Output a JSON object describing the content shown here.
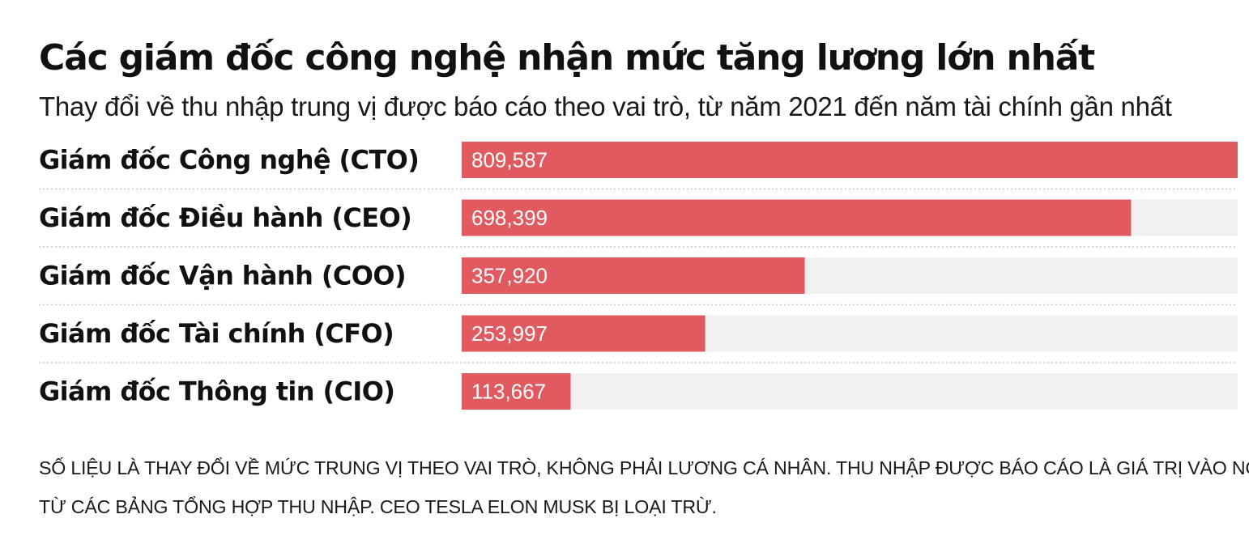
{
  "title": "Các giám đốc công nghệ nhận mức tăng lương lớn nhất",
  "subtitle": "Thay đổi về thu nhập trung vị được báo cáo theo vai trò, từ năm 2021 đến năm tài chính gần nhất",
  "note": {
    "line1": "SỐ LIỆU LÀ THAY ĐỔI VỀ MỨC TRUNG VỊ THEO VAI TRÒ, KHÔNG PHẢI LƯƠNG CÁ NHÂN. THU NHẬP ĐƯỢC BÁO CÁO LÀ GIÁ TRỊ VÀO NGÀY CẤP",
    "line2": "TỪ CÁC BẢNG TỔNG HỢP THU NHẬP. CEO TESLA ELON MUSK BỊ LOẠI TRỪ."
  },
  "colors": {
    "bar": "#e05a5f",
    "track": "#f0f0f0",
    "separator": "#c8c8c8"
  },
  "chart_data": {
    "type": "bar",
    "orientation": "horizontal",
    "categories": [
      "Giám đốc Công nghệ (CTO)",
      "Giám đốc Điều hành (CEO)",
      "Giám đốc Vận hành (COO)",
      "Giám đốc Tài chính (CFO)",
      "Giám đốc Thông tin (CIO)"
    ],
    "values": [
      809587,
      698399,
      357920,
      253997,
      113667
    ],
    "value_labels": [
      "809,587",
      "698,399",
      "357,920",
      "253,997",
      "113,667"
    ],
    "xlim": [
      0,
      809587
    ],
    "grid": false,
    "legend": "none"
  }
}
